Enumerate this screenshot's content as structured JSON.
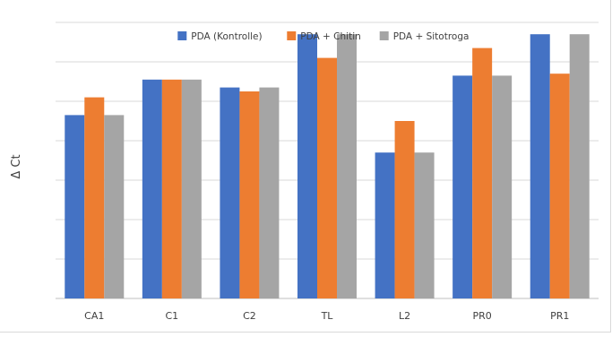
{
  "chart_data": {
    "type": "bar",
    "title": "",
    "xlabel": "",
    "ylabel": "Δ Ct",
    "ylim": [
      0,
      7
    ],
    "y_tick_labels_shown": false,
    "grid": true,
    "legend_position": "top-center",
    "categories": [
      "CA1",
      "C1",
      "C2",
      "TL",
      "L2",
      "PR0",
      "PR1"
    ],
    "series": [
      {
        "name": "PDA (Kontrolle)",
        "color": "#4472c4",
        "values": [
          4.65,
          5.55,
          5.35,
          6.7,
          3.7,
          5.65,
          6.7
        ]
      },
      {
        "name": "PDA + Chitin",
        "color": "#ed7d31",
        "values": [
          5.1,
          5.55,
          5.25,
          6.1,
          4.5,
          6.35,
          5.7
        ]
      },
      {
        "name": "PDA + Sitotroga",
        "color": "#a5a5a5",
        "values": [
          4.65,
          5.55,
          5.35,
          6.7,
          3.7,
          5.65,
          6.7
        ]
      }
    ]
  }
}
